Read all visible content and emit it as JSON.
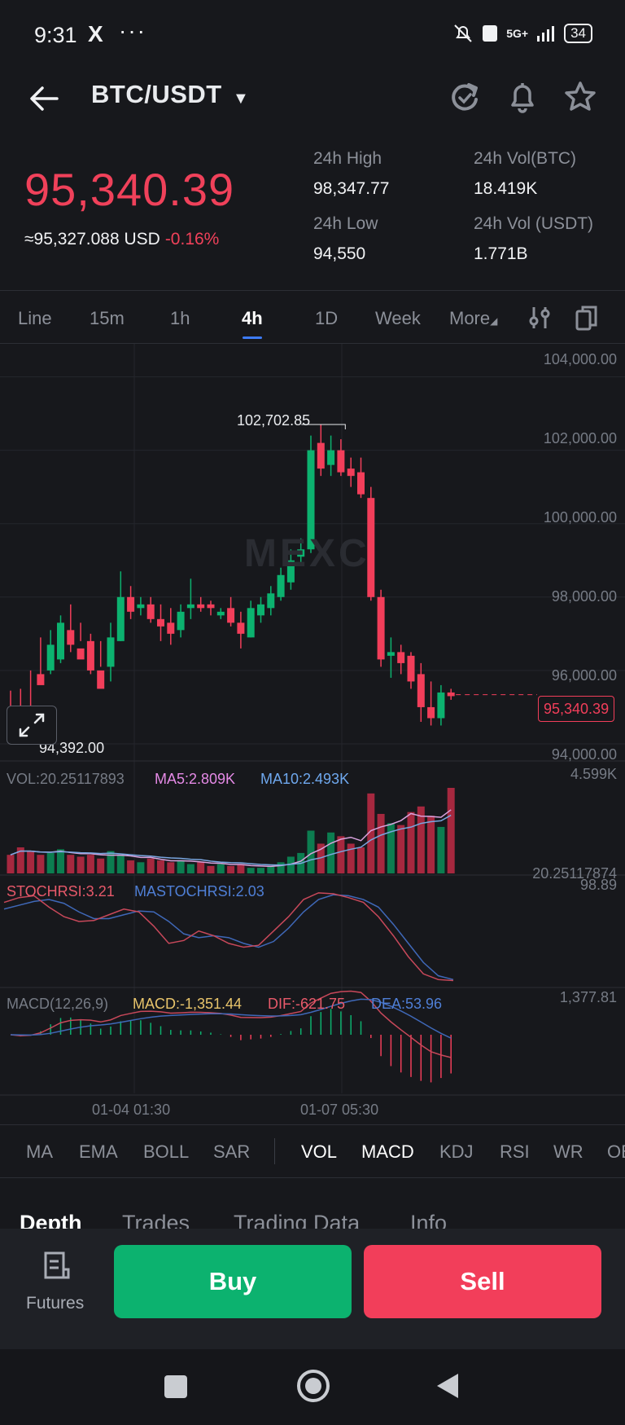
{
  "status_bar": {
    "time": "9:31",
    "app_icon": "X",
    "more": "···",
    "network": "5G+",
    "battery": "34"
  },
  "header": {
    "pair": "BTC/USDT"
  },
  "price": {
    "last": "95,340.39",
    "usd_equiv": "≈95,327.088 USD",
    "change": "-0.16%",
    "stats": [
      {
        "label": "24h High",
        "value": "98,347.77"
      },
      {
        "label": "24h Vol(BTC)",
        "value": "18.419K"
      },
      {
        "label": "24h Low",
        "value": "94,550"
      },
      {
        "label": "24h Vol (USDT)",
        "value": "1.771B"
      }
    ]
  },
  "timeframes": [
    "Line",
    "15m",
    "1h",
    "4h",
    "1D",
    "Week",
    "More"
  ],
  "active_timeframe": "4h",
  "chart_data": {
    "type": "candlestick",
    "y_ticks": [
      "104,000.00",
      "102,000.00",
      "100,000.00",
      "98,000.00",
      "96,000.00",
      "94,000.00"
    ],
    "ylim": [
      93800,
      104500
    ],
    "high_label": "102,702.85",
    "low_label": "94,392.00",
    "current_price_tag": "95,340.39",
    "watermark": "MEXC",
    "candles": [
      [
        94900,
        95450,
        94700,
        94400
      ],
      [
        94400,
        95500,
        94300,
        94300
      ],
      [
        95000,
        96000,
        94800,
        94800
      ],
      [
        95900,
        96900,
        95600,
        95700
      ],
      [
        96000,
        97100,
        96700,
        95900
      ],
      [
        96300,
        97500,
        97300,
        96200
      ],
      [
        97100,
        97800,
        96700,
        96500
      ],
      [
        96600,
        97300,
        96300,
        96800
      ],
      [
        96800,
        97000,
        96000,
        95900
      ],
      [
        96000,
        96800,
        95500,
        96100
      ],
      [
        96100,
        97300,
        96900,
        95700
      ],
      [
        96800,
        98700,
        98000,
        96800
      ],
      [
        98000,
        98300,
        97600,
        97400
      ],
      [
        97700,
        98000,
        97800,
        97500
      ],
      [
        97800,
        98000,
        97400,
        97300
      ],
      [
        97400,
        97800,
        97200,
        96800
      ],
      [
        97300,
        97700,
        97000,
        96700
      ],
      [
        97100,
        97800,
        97600,
        96900
      ],
      [
        97700,
        98500,
        97800,
        97400
      ],
      [
        97800,
        98000,
        97700,
        97600
      ],
      [
        97800,
        97900,
        97700,
        97500
      ],
      [
        97500,
        97700,
        97600,
        97400
      ],
      [
        97700,
        98000,
        97300,
        97200
      ],
      [
        97300,
        97600,
        97000,
        96600
      ],
      [
        96900,
        97900,
        97700,
        96900
      ],
      [
        97500,
        98000,
        97800,
        97300
      ],
      [
        97700,
        98300,
        98100,
        97500
      ],
      [
        98000,
        98800,
        98600,
        97900
      ],
      [
        98400,
        99300,
        99000,
        98200
      ],
      [
        99100,
        99600,
        99300,
        98900
      ],
      [
        99300,
        102400,
        102000,
        99200
      ],
      [
        102200,
        102700,
        101500,
        101300
      ],
      [
        101600,
        102400,
        102000,
        101300
      ],
      [
        102000,
        102300,
        101400,
        101300
      ],
      [
        101500,
        101800,
        101300,
        101000
      ],
      [
        101400,
        101800,
        100800,
        100700
      ],
      [
        100700,
        101000,
        98000,
        97900
      ],
      [
        98000,
        98200,
        96300,
        96100
      ],
      [
        96400,
        96900,
        96500,
        95800
      ],
      [
        96500,
        96700,
        96200,
        95900
      ],
      [
        96400,
        96500,
        95700,
        95500
      ],
      [
        95900,
        96200,
        95000,
        94600
      ],
      [
        95000,
        95700,
        94700,
        94500
      ],
      [
        94700,
        95600,
        95400,
        94500
      ],
      [
        95400,
        95500,
        95300,
        95200
      ]
    ],
    "volume": {
      "label": "VOL:20.25117893",
      "ma5": "MA5:2.809K",
      "ma10": "MA10:2.493K",
      "max_label": "4.599K",
      "min_label": "20.25117874",
      "values": [
        1.0,
        1.4,
        1.2,
        1.0,
        1.1,
        1.3,
        1.0,
        0.9,
        1.0,
        0.8,
        1.2,
        1.0,
        0.7,
        0.6,
        0.8,
        0.7,
        0.6,
        0.7,
        0.5,
        0.6,
        0.4,
        0.5,
        0.4,
        0.5,
        0.3,
        0.3,
        0.4,
        0.6,
        0.9,
        1.1,
        2.3,
        1.6,
        2.2,
        2.0,
        1.6,
        1.4,
        4.3,
        3.2,
        2.7,
        2.6,
        3.3,
        3.6,
        3.1,
        2.5,
        4.6
      ]
    },
    "stochrsi": {
      "label": "STOCHRSI:3.21",
      "ma_label": "MASTOCHRSI:2.03",
      "max_label": "98.89",
      "k": [
        85,
        90,
        92,
        80,
        70,
        65,
        66,
        72,
        78,
        75,
        60,
        42,
        45,
        55,
        50,
        42,
        38,
        40,
        55,
        70,
        88,
        95,
        94,
        90,
        85,
        70,
        50,
        28,
        10,
        4,
        3
      ],
      "d": [
        78,
        82,
        86,
        88,
        84,
        75,
        68,
        68,
        72,
        76,
        75,
        65,
        52,
        48,
        50,
        48,
        42,
        38,
        44,
        58,
        75,
        88,
        93,
        92,
        88,
        80,
        62,
        42,
        22,
        8,
        4
      ]
    },
    "macd": {
      "label": "MACD(12,26,9)",
      "macd": "MACD:-1,351.44",
      "dif": "DIF:-621.75",
      "dea": "DEA:53.96",
      "max_label": "1,377.81",
      "x_labels": [
        "01-04 01:30",
        "01-07 05:30"
      ]
    }
  },
  "indicator_tabs": [
    "MA",
    "EMA",
    "BOLL",
    "SAR",
    "VOL",
    "MACD",
    "KDJ",
    "RSI",
    "WR",
    "OBV"
  ],
  "active_indicators": [
    "VOL",
    "MACD"
  ],
  "section_tabs": [
    "Depth",
    "Trades",
    "Trading Data",
    "Info"
  ],
  "active_section": "Depth",
  "actions": {
    "futures": "Futures",
    "buy": "Buy",
    "sell": "Sell"
  },
  "colors": {
    "up": "#0cb26f",
    "down": "#f23e5a",
    "accent": "#3d7bf7"
  }
}
